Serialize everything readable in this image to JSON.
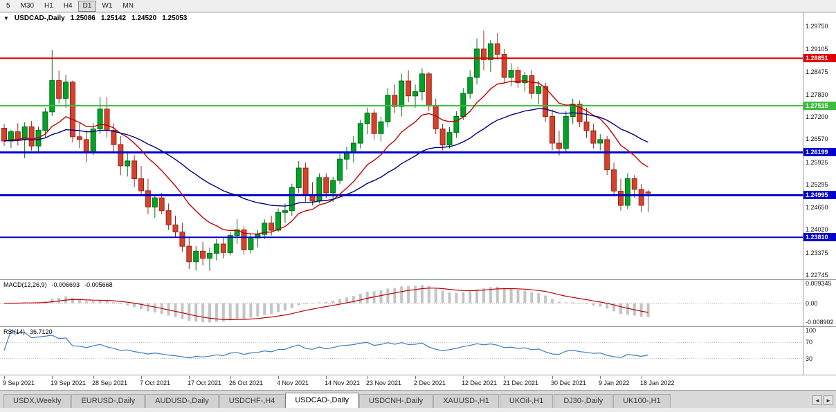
{
  "toolbar": {
    "timeframes": [
      {
        "label": "5",
        "active": false
      },
      {
        "label": "M30",
        "active": false
      },
      {
        "label": "H1",
        "active": false
      },
      {
        "label": "H4",
        "active": false
      },
      {
        "label": "D1",
        "active": true
      },
      {
        "label": "W1",
        "active": false
      },
      {
        "label": "MN",
        "active": false
      }
    ]
  },
  "chart": {
    "dropdown_icon": "▼",
    "title": "USDCAD-,Daily",
    "ohlc": {
      "open": "1.25086",
      "high": "1.25142",
      "low": "1.24520",
      "close": "1.25053"
    }
  },
  "macd_panel": {
    "label": "MACD(12,26,9)",
    "value_main": "-0.006693",
    "value_signal": "-0.005668"
  },
  "rsi_panel": {
    "label": "RSI(14)",
    "value": "36.7120"
  },
  "tab_bar": {
    "scroll_left_icon": "◄",
    "scroll_right_icon": "►"
  },
  "tabs": [
    {
      "label": "USDX,Weekly",
      "active": false
    },
    {
      "label": "EURUSD-,Daily",
      "active": false
    },
    {
      "label": "AUDUSD-,Daily",
      "active": false
    },
    {
      "label": "USDCHF-,H4",
      "active": false
    },
    {
      "label": "USDCAD-,Daily",
      "active": true
    },
    {
      "label": "USDCNH-,Daily",
      "active": false
    },
    {
      "label": "XAUUSD-,H1",
      "active": false
    },
    {
      "label": "UKOil-,H1",
      "active": false
    },
    {
      "label": "DJ30-,Daily",
      "active": false
    },
    {
      "label": "UK100-,H1",
      "active": false
    }
  ],
  "colors": {
    "up": "#00a326",
    "up_border": "#006a18",
    "down": "#d7412c",
    "down_border": "#92291a",
    "ma_fast": "#c00000",
    "ma_slow": "#000080",
    "macd_hist": "#c4c4c4",
    "macd_signal": "#c00000",
    "rsi": "#3b7bbf",
    "hline_red": "#e00000",
    "hline_green": "#3dbd3d",
    "hline_blue": "#0000cc"
  },
  "chart_data": {
    "type": "candlestick",
    "symbol": "USDCAD",
    "timeframe": "Daily",
    "title": "USDCAD-,Daily 1.25086 1.25142 1.24520 1.25053",
    "x_labels": [
      "9 Sep 2021",
      "19 Sep 2021",
      "28 Sep 2021",
      "7 Oct 2021",
      "17 Oct 2021",
      "26 Oct 2021",
      "4 Nov 2021",
      "14 Nov 2021",
      "23 Nov 2021",
      "2 Dec 2021",
      "12 Dec 2021",
      "21 Dec 2021",
      "30 Dec 2021",
      "9 Jan 2022",
      "18 Jan 2022"
    ],
    "label_bar_indices": [
      0,
      7,
      13,
      20,
      27,
      33,
      40,
      47,
      53,
      60,
      67,
      73,
      80,
      87,
      93
    ],
    "price_ticks": [
      "1.29750",
      "1.29105",
      "1.28475",
      "1.27830",
      "1.27200",
      "1.26570",
      "1.25925",
      "1.25295",
      "1.24650",
      "1.24020",
      "1.23375",
      "1.22745"
    ],
    "horizontal_lines": [
      {
        "price": 1.28851,
        "label": "1.28851",
        "color": "#e00000",
        "width": 2
      },
      {
        "price": 1.27515,
        "label": "1.27515",
        "color": "#3dbd3d",
        "width": 2
      },
      {
        "price": 1.26199,
        "label": "1.26199",
        "color": "#0000cc",
        "width": 3
      },
      {
        "price": 1.24995,
        "label": "1.24995",
        "color": "#0000cc",
        "width": 3
      },
      {
        "price": 1.2381,
        "label": "1.23810",
        "color": "#0000cc",
        "width": 2
      }
    ],
    "moving_averages": [
      {
        "name": "ma-fast-red",
        "period": 13,
        "color": "#c00000"
      },
      {
        "name": "ma-slow-blue",
        "period": 34,
        "color": "#000080"
      }
    ],
    "macd": {
      "fast": 12,
      "slow": 26,
      "signal": 9,
      "ticks": [
        "0.009345",
        "0.00",
        "-0.008902"
      ],
      "tick_values": [
        0.009345,
        0,
        -0.008902
      ],
      "current_main": -0.006693,
      "current_signal": -0.005668
    },
    "rsi": {
      "period": 14,
      "ticks": [
        "100",
        "70",
        "30"
      ],
      "levels": [
        70,
        30
      ],
      "current": 36.712
    },
    "ohlc": [
      [
        1.2688,
        1.27,
        1.2639,
        1.2652
      ],
      [
        1.2652,
        1.2684,
        1.2633,
        1.2678
      ],
      [
        1.2678,
        1.2702,
        1.264,
        1.2656
      ],
      [
        1.2656,
        1.2705,
        1.2604,
        1.2692
      ],
      [
        1.2692,
        1.2708,
        1.2625,
        1.2638
      ],
      [
        1.2638,
        1.2692,
        1.262,
        1.2682
      ],
      [
        1.2682,
        1.2745,
        1.2662,
        1.2734
      ],
      [
        1.2734,
        1.2908,
        1.2722,
        1.2822
      ],
      [
        1.2822,
        1.285,
        1.2758,
        1.2772
      ],
      [
        1.2772,
        1.2838,
        1.2746,
        1.2818
      ],
      [
        1.2818,
        1.2822,
        1.2648,
        1.2664
      ],
      [
        1.2664,
        1.2702,
        1.2632,
        1.2656
      ],
      [
        1.2656,
        1.2682,
        1.2592,
        1.2622
      ],
      [
        1.2622,
        1.2702,
        1.2612,
        1.2686
      ],
      [
        1.2686,
        1.2776,
        1.2672,
        1.2742
      ],
      [
        1.2742,
        1.2776,
        1.2662,
        1.2682
      ],
      [
        1.2682,
        1.2702,
        1.2622,
        1.2642
      ],
      [
        1.2642,
        1.2666,
        1.2556,
        1.2582
      ],
      [
        1.2582,
        1.2622,
        1.2552,
        1.2596
      ],
      [
        1.2596,
        1.2612,
        1.2522,
        1.2546
      ],
      [
        1.2546,
        1.2582,
        1.2498,
        1.2512
      ],
      [
        1.2512,
        1.2546,
        1.2446,
        1.2466
      ],
      [
        1.2466,
        1.2502,
        1.2436,
        1.2492
      ],
      [
        1.2492,
        1.2506,
        1.2446,
        1.2456
      ],
      [
        1.2456,
        1.2476,
        1.2402,
        1.2416
      ],
      [
        1.2416,
        1.2442,
        1.2382,
        1.2396
      ],
      [
        1.2396,
        1.2422,
        1.234,
        1.2356
      ],
      [
        1.2356,
        1.2382,
        1.2292,
        1.2312
      ],
      [
        1.2312,
        1.2356,
        1.2288,
        1.2342
      ],
      [
        1.2342,
        1.2368,
        1.2302,
        1.2322
      ],
      [
        1.2322,
        1.2352,
        1.2287,
        1.2336
      ],
      [
        1.2336,
        1.2376,
        1.2316,
        1.2362
      ],
      [
        1.2362,
        1.2382,
        1.2322,
        1.2338
      ],
      [
        1.2338,
        1.2396,
        1.233,
        1.2386
      ],
      [
        1.2386,
        1.2432,
        1.2362,
        1.2402
      ],
      [
        1.2402,
        1.2412,
        1.2332,
        1.2346
      ],
      [
        1.2346,
        1.2392,
        1.2336,
        1.2379
      ],
      [
        1.2379,
        1.2402,
        1.2352,
        1.2389
      ],
      [
        1.2389,
        1.2432,
        1.2376,
        1.2421
      ],
      [
        1.2421,
        1.2442,
        1.2386,
        1.2401
      ],
      [
        1.2401,
        1.2462,
        1.2396,
        1.2451
      ],
      [
        1.2451,
        1.2476,
        1.2421,
        1.2456
      ],
      [
        1.2456,
        1.2532,
        1.2441,
        1.2521
      ],
      [
        1.2521,
        1.2596,
        1.2506,
        1.2576
      ],
      [
        1.2576,
        1.2591,
        1.2481,
        1.2501
      ],
      [
        1.2501,
        1.2536,
        1.2471,
        1.2483
      ],
      [
        1.2483,
        1.2561,
        1.2476,
        1.2549
      ],
      [
        1.2549,
        1.2561,
        1.2491,
        1.2506
      ],
      [
        1.2506,
        1.2551,
        1.2481,
        1.2541
      ],
      [
        1.2541,
        1.2616,
        1.2531,
        1.2601
      ],
      [
        1.2601,
        1.2636,
        1.2571,
        1.2621
      ],
      [
        1.2621,
        1.2666,
        1.2591,
        1.2646
      ],
      [
        1.2646,
        1.2712,
        1.2631,
        1.2701
      ],
      [
        1.2701,
        1.2746,
        1.2671,
        1.2731
      ],
      [
        1.2731,
        1.2741,
        1.2656,
        1.2673
      ],
      [
        1.2673,
        1.2721,
        1.2651,
        1.2706
      ],
      [
        1.2706,
        1.2801,
        1.2691,
        1.2781
      ],
      [
        1.2781,
        1.2811,
        1.2731,
        1.2749
      ],
      [
        1.2749,
        1.2841,
        1.2721,
        1.2821
      ],
      [
        1.2821,
        1.2851,
        1.2761,
        1.2779
      ],
      [
        1.2779,
        1.2811,
        1.2746,
        1.2791
      ],
      [
        1.2791,
        1.2856,
        1.2766,
        1.2841
      ],
      [
        1.2841,
        1.2846,
        1.2736,
        1.2751
      ],
      [
        1.2751,
        1.2771,
        1.2671,
        1.2686
      ],
      [
        1.2686,
        1.2701,
        1.2626,
        1.2641
      ],
      [
        1.2641,
        1.2691,
        1.2631,
        1.2676
      ],
      [
        1.2676,
        1.2736,
        1.2661,
        1.2721
      ],
      [
        1.2721,
        1.2801,
        1.2711,
        1.2786
      ],
      [
        1.2786,
        1.2851,
        1.2771,
        1.2831
      ],
      [
        1.2831,
        1.2941,
        1.2811,
        1.2911
      ],
      [
        1.2911,
        1.2963,
        1.2851,
        1.2881
      ],
      [
        1.2881,
        1.2936,
        1.2846,
        1.2926
      ],
      [
        1.2926,
        1.2956,
        1.2881,
        1.2896
      ],
      [
        1.2896,
        1.2911,
        1.2816,
        1.2831
      ],
      [
        1.2831,
        1.2871,
        1.2806,
        1.2851
      ],
      [
        1.2851,
        1.2861,
        1.2801,
        1.2816
      ],
      [
        1.2816,
        1.2846,
        1.2791,
        1.2836
      ],
      [
        1.2836,
        1.2851,
        1.2771,
        1.2786
      ],
      [
        1.2786,
        1.2821,
        1.2756,
        1.2806
      ],
      [
        1.2806,
        1.2816,
        1.2706,
        1.2721
      ],
      [
        1.2721,
        1.2741,
        1.2626,
        1.2646
      ],
      [
        1.2646,
        1.2681,
        1.2611,
        1.2631
      ],
      [
        1.2631,
        1.2736,
        1.2621,
        1.2721
      ],
      [
        1.2721,
        1.2771,
        1.2701,
        1.2756
      ],
      [
        1.2756,
        1.2766,
        1.2691,
        1.2706
      ],
      [
        1.2706,
        1.2746,
        1.2661,
        1.2681
      ],
      [
        1.2681,
        1.2701,
        1.2631,
        1.2646
      ],
      [
        1.2646,
        1.2671,
        1.2626,
        1.2656
      ],
      [
        1.2656,
        1.2666,
        1.2556,
        1.2571
      ],
      [
        1.2571,
        1.2591,
        1.2496,
        1.2511
      ],
      [
        1.2511,
        1.2546,
        1.2456,
        1.2471
      ],
      [
        1.2471,
        1.2561,
        1.2461,
        1.2546
      ],
      [
        1.2546,
        1.2556,
        1.2491,
        1.2516
      ],
      [
        1.2516,
        1.2531,
        1.2452,
        1.2471
      ],
      [
        1.25086,
        1.25142,
        1.2452,
        1.25053
      ]
    ]
  }
}
